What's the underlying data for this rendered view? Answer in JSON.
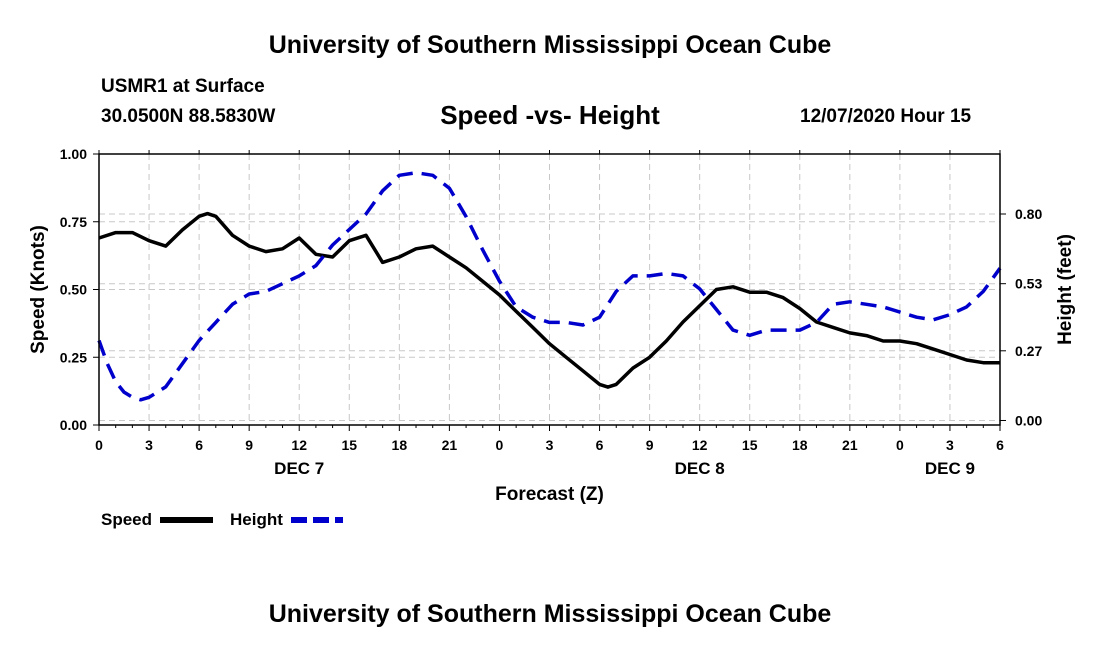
{
  "header": {
    "title": "University of Southern Mississippi Ocean Cube",
    "station": "USMR1 at Surface",
    "coords": "30.0500N 88.5830W",
    "chart_title": "Speed -vs- Height",
    "run_time": "12/07/2020 Hour 15"
  },
  "footer": {
    "title": "University of Southern Mississippi Ocean Cube"
  },
  "colors": {
    "speed": "#000000",
    "height": "#0000cc",
    "grid": "#c8c8c8"
  },
  "chart_data": {
    "type": "line",
    "title": "Speed -vs- Height",
    "xlabel": "Forecast (Z)",
    "ylabel": "Speed (Knots)",
    "y2label": "Height (feet)",
    "x_unit": "hours from Dec 7 00Z",
    "xlim": [
      0,
      54
    ],
    "ylim": [
      0,
      1.0
    ],
    "y2lim": [
      -0.0175,
      1.0325
    ],
    "x_ticks": [
      0,
      3,
      6,
      9,
      12,
      15,
      18,
      21,
      24,
      27,
      30,
      33,
      36,
      39,
      42,
      45,
      48,
      51,
      54
    ],
    "x_tick_labels": [
      "0",
      "3",
      "6",
      "9",
      "12",
      "15",
      "18",
      "21",
      "0",
      "3",
      "6",
      "9",
      "12",
      "15",
      "18",
      "21",
      "0",
      "3",
      "6"
    ],
    "date_labels": [
      {
        "x": 12,
        "text": "DEC 7"
      },
      {
        "x": 36,
        "text": "DEC 8"
      },
      {
        "x": 51,
        "text": "DEC 9"
      }
    ],
    "y_ticks": [
      0,
      0.25,
      0.5,
      0.75,
      1.0
    ],
    "y_tick_labels": [
      "0.00",
      "0.25",
      "0.50",
      "0.75",
      "1.00"
    ],
    "y2_ticks": [
      0,
      0.27,
      0.53,
      0.8
    ],
    "y2_tick_labels": [
      "0.00",
      "0.27",
      "0.53",
      "0.80"
    ],
    "grid": true,
    "legend_position": "bottom-left",
    "series": [
      {
        "name": "Speed",
        "axis": "left",
        "style": "solid",
        "x": [
          0,
          1,
          2,
          3,
          4,
          5,
          6,
          6.5,
          7,
          8,
          9,
          10,
          11,
          12,
          13,
          14,
          15,
          16,
          17,
          18,
          19,
          20,
          21,
          22,
          23,
          24,
          25,
          26,
          27,
          28,
          29,
          30,
          30.5,
          31,
          32,
          33,
          34,
          35,
          36,
          37,
          38,
          39,
          40,
          41,
          42,
          43,
          44,
          45,
          46,
          47,
          48,
          49,
          50,
          51,
          52,
          53,
          54
        ],
        "values": [
          0.69,
          0.71,
          0.71,
          0.68,
          0.66,
          0.72,
          0.77,
          0.78,
          0.77,
          0.7,
          0.66,
          0.64,
          0.65,
          0.69,
          0.63,
          0.62,
          0.68,
          0.7,
          0.6,
          0.62,
          0.65,
          0.66,
          0.62,
          0.58,
          0.53,
          0.48,
          0.42,
          0.36,
          0.3,
          0.25,
          0.2,
          0.15,
          0.14,
          0.15,
          0.21,
          0.25,
          0.31,
          0.38,
          0.44,
          0.5,
          0.51,
          0.49,
          0.49,
          0.47,
          0.43,
          0.38,
          0.36,
          0.34,
          0.33,
          0.31,
          0.31,
          0.3,
          0.28,
          0.26,
          0.24,
          0.23,
          0.23
        ]
      },
      {
        "name": "Height",
        "axis": "right",
        "style": "dashed",
        "x": [
          0,
          0.5,
          1,
          1.5,
          2,
          2.5,
          3,
          4,
          5,
          6,
          7,
          8,
          9,
          10,
          11,
          12,
          13,
          14,
          15,
          16,
          17,
          18,
          19,
          20,
          21,
          22,
          23,
          24,
          25,
          26,
          27,
          28,
          29,
          30,
          31,
          32,
          33,
          34,
          35,
          36,
          37,
          38,
          39,
          40,
          41,
          42,
          43,
          44,
          45,
          46,
          47,
          48,
          49,
          50,
          51,
          52,
          53,
          54
        ],
        "values": [
          0.31,
          0.22,
          0.15,
          0.11,
          0.09,
          0.08,
          0.09,
          0.13,
          0.22,
          0.31,
          0.38,
          0.45,
          0.49,
          0.5,
          0.53,
          0.56,
          0.6,
          0.68,
          0.74,
          0.8,
          0.89,
          0.95,
          0.96,
          0.95,
          0.9,
          0.79,
          0.66,
          0.54,
          0.44,
          0.4,
          0.38,
          0.38,
          0.37,
          0.4,
          0.5,
          0.56,
          0.56,
          0.57,
          0.56,
          0.51,
          0.43,
          0.35,
          0.33,
          0.35,
          0.35,
          0.35,
          0.38,
          0.45,
          0.46,
          0.45,
          0.44,
          0.42,
          0.4,
          0.39,
          0.41,
          0.44,
          0.5,
          0.59
        ]
      }
    ]
  }
}
